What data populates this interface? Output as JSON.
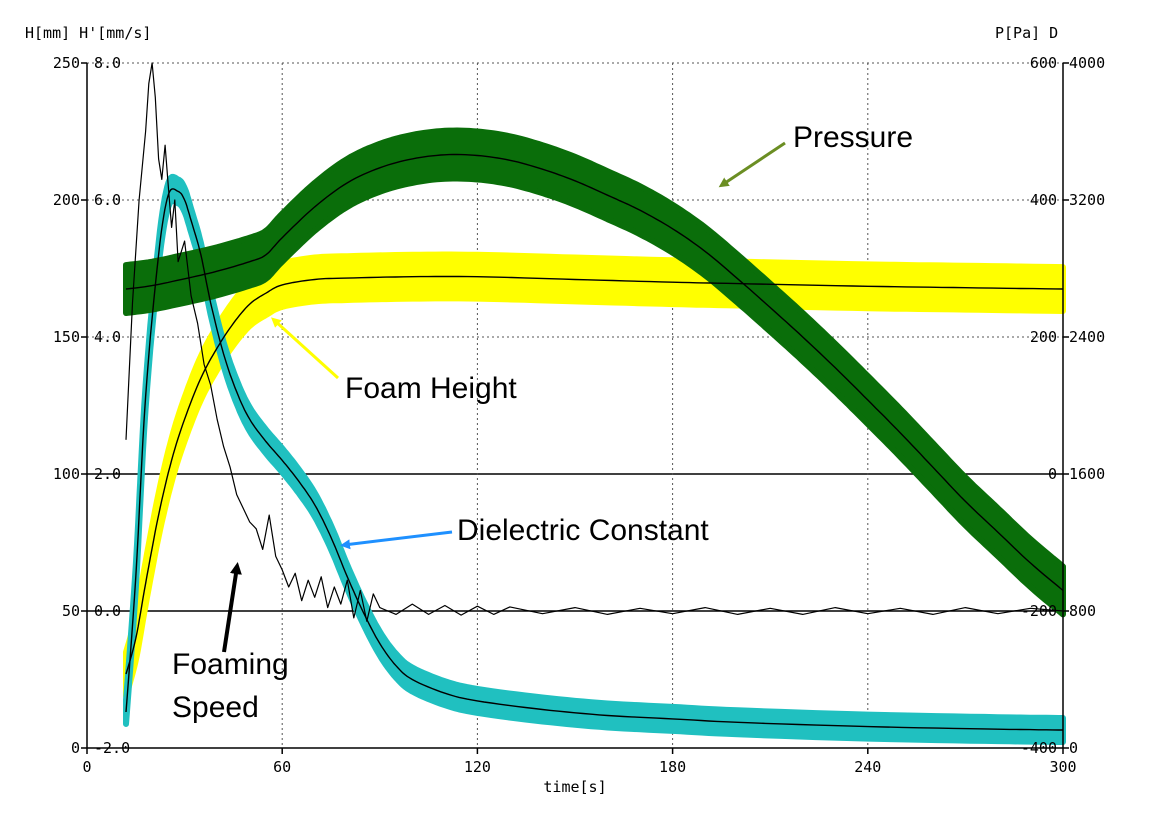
{
  "chart_data": {
    "type": "line",
    "xlabel": "time[s]",
    "x_ticks": [
      "0",
      "60",
      "120",
      "180",
      "240",
      "300"
    ],
    "xlim": [
      0,
      300
    ],
    "axes": {
      "left_header": "H[mm] H'[mm/s]",
      "right_header": "P[Pa] D",
      "h_ticks": [
        "250",
        "200",
        "150",
        "100",
        "50",
        "0"
      ],
      "hp_ticks": [
        "8.0",
        "6.0",
        "4.0",
        "2.0",
        "0.0",
        "-2.0"
      ],
      "p_ticks": [
        "600",
        "400",
        "200",
        "0",
        "-200",
        "-400"
      ],
      "d_ticks": [
        "4000",
        "3200",
        "2400",
        "1600",
        "800",
        "0"
      ],
      "h_range": [
        0,
        250
      ],
      "hp_range": [
        -2.0,
        8.0
      ],
      "p_range": [
        -400,
        600
      ],
      "d_range": [
        0,
        4000
      ]
    },
    "grid": "dotted vertical and horizontal at tick positions; solid lines at 100 and 50",
    "colors": {
      "pressure": "#0a6e0a",
      "foam_height": "#ffff00",
      "dielectric": "#20c0c0",
      "pressure_arrow": "#6b8e23",
      "foam_arrow": "#ffff00",
      "dielectric_arrow": "#1e90ff",
      "speed_arrow": "#000000"
    },
    "series": [
      {
        "name": "Pressure",
        "axis": "P[Pa]",
        "band_half_width": 35,
        "x": [
          12,
          20,
          30,
          40,
          50,
          55,
          60,
          70,
          80,
          90,
          100,
          110,
          120,
          130,
          140,
          150,
          160,
          170,
          180,
          190,
          200,
          210,
          220,
          230,
          240,
          250,
          260,
          270,
          280,
          290,
          300
        ],
        "y": [
          270,
          275,
          285,
          296,
          310,
          320,
          345,
          390,
          425,
          447,
          460,
          466,
          465,
          458,
          445,
          428,
          407,
          385,
          358,
          325,
          285,
          243,
          200,
          155,
          108,
          60,
          10,
          -40,
          -85,
          -130,
          -170
        ]
      },
      {
        "name": "Foam Height",
        "axis": "H[mm]",
        "band_half_width": 8,
        "x": [
          12,
          15,
          18,
          22,
          26,
          30,
          35,
          40,
          45,
          50,
          55,
          60,
          70,
          80,
          100,
          120,
          150,
          180,
          200,
          240,
          270,
          300
        ],
        "y": [
          27,
          40,
          60,
          85,
          105,
          120,
          135,
          146,
          155,
          162,
          166,
          169,
          171,
          171.5,
          172,
          172,
          171,
          170,
          169.5,
          168.5,
          168,
          167.5
        ]
      },
      {
        "name": "Dielectric Constant",
        "axis": "D",
        "band_half_width": 70,
        "x": [
          12,
          15,
          18,
          22,
          25,
          28,
          30,
          32,
          35,
          38,
          42,
          46,
          50,
          55,
          60,
          65,
          70,
          75,
          80,
          85,
          90,
          95,
          100,
          110,
          120,
          140,
          160,
          180,
          200,
          240,
          280,
          300
        ],
        "y": [
          210,
          1000,
          2050,
          2880,
          3230,
          3250,
          3200,
          3080,
          2880,
          2600,
          2300,
          2080,
          1920,
          1790,
          1680,
          1560,
          1420,
          1230,
          1000,
          790,
          610,
          480,
          400,
          320,
          275,
          225,
          190,
          170,
          150,
          125,
          110,
          105
        ]
      },
      {
        "name": "Foaming Speed",
        "axis": "H'[mm/s]",
        "x": [
          12,
          14,
          16,
          18,
          19,
          20,
          21,
          22,
          23,
          24,
          25,
          26,
          27,
          28,
          30,
          32,
          34,
          36,
          38,
          40,
          42,
          44,
          46,
          48,
          50,
          52,
          54,
          56,
          58,
          60,
          62,
          64,
          66,
          68,
          70,
          72,
          74,
          76,
          78,
          80,
          82,
          84,
          86,
          88,
          90,
          95,
          100,
          105,
          110,
          115,
          120,
          125,
          130,
          140,
          150,
          160,
          170,
          180,
          190,
          200,
          210,
          220,
          230,
          240,
          250,
          260,
          270,
          280,
          290,
          300
        ],
        "y": [
          2.5,
          4.5,
          6.0,
          7.0,
          7.7,
          8.0,
          7.5,
          6.6,
          6.3,
          6.8,
          6.2,
          5.6,
          6.0,
          5.1,
          5.4,
          4.6,
          4.2,
          3.6,
          3.3,
          2.8,
          2.4,
          2.1,
          1.7,
          1.5,
          1.3,
          1.2,
          0.9,
          1.4,
          0.8,
          0.6,
          0.35,
          0.55,
          0.15,
          0.45,
          0.2,
          0.5,
          0.05,
          0.35,
          0.1,
          0.45,
          -0.1,
          0.3,
          -0.15,
          0.25,
          0.05,
          -0.05,
          0.1,
          -0.05,
          0.08,
          -0.06,
          0.07,
          -0.05,
          0.06,
          -0.04,
          0.05,
          -0.05,
          0.04,
          -0.04,
          0.05,
          -0.05,
          0.04,
          -0.05,
          0.05,
          -0.04,
          0.04,
          -0.05,
          0.05,
          -0.04,
          0.04,
          0.0
        ]
      }
    ],
    "annotations": [
      {
        "name": "pressure-label",
        "lines": [
          "Pressure"
        ]
      },
      {
        "name": "foam-height-label",
        "lines": [
          "Foam Height"
        ]
      },
      {
        "name": "dielectric-label",
        "lines": [
          "Dielectric Constant"
        ]
      },
      {
        "name": "foaming-speed-label",
        "lines": [
          "Foaming",
          "Speed"
        ]
      }
    ]
  }
}
